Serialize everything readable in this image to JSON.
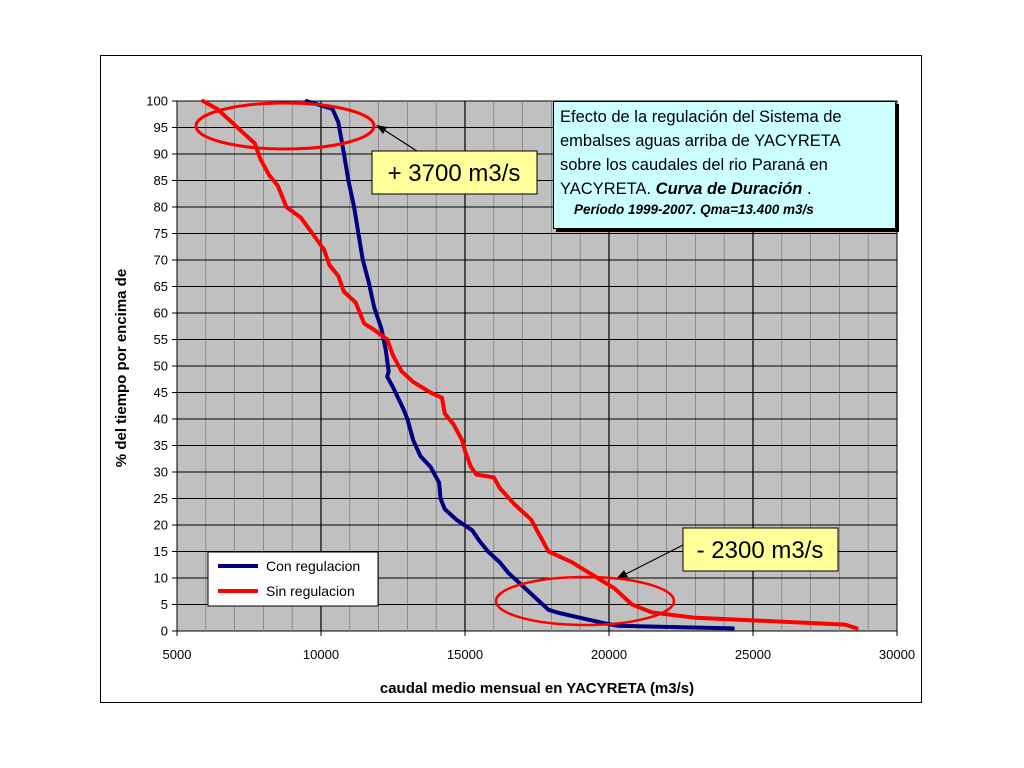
{
  "chart_data": {
    "type": "line",
    "xlabel": "caudal medio mensual en YACYRETA (m3/s)",
    "ylabel": "% del tiempo por encima de",
    "xlim": [
      5000,
      30000
    ],
    "ylim": [
      0,
      100
    ],
    "x_ticks": [
      "5000",
      "10000",
      "15000",
      "20000",
      "25000",
      "30000"
    ],
    "y_ticks": [
      "0",
      "5",
      "10",
      "15",
      "20",
      "25",
      "30",
      "35",
      "40",
      "45",
      "50",
      "55",
      "60",
      "65",
      "70",
      "75",
      "80",
      "85",
      "90",
      "95",
      "100"
    ],
    "grid": true,
    "legend_position": "bottom-left",
    "series": [
      {
        "name": "Con regulacion",
        "color": "#000080",
        "x": [
          9500,
          10400,
          10600,
          10700,
          10800,
          10950,
          11150,
          11300,
          11450,
          11650,
          11850,
          12100,
          12250,
          12300,
          12350,
          12300,
          12500,
          12850,
          13000,
          13200,
          13450,
          13800,
          14100,
          14150,
          14300,
          14700,
          15250,
          15500,
          15800,
          16200,
          16500,
          16800,
          17300,
          17900,
          18200,
          19000,
          19800,
          20300,
          21000,
          22500,
          24300
        ],
        "y": [
          100,
          98.5,
          96,
          93,
          90,
          85,
          80,
          75,
          70,
          66,
          61,
          57,
          53,
          51,
          49,
          48,
          46,
          42,
          40,
          36,
          33,
          31,
          28,
          25,
          23,
          21,
          19,
          17,
          15,
          13,
          11,
          9.5,
          7,
          4,
          3.5,
          2.5,
          1.5,
          1,
          0.9,
          0.7,
          0.5
        ]
      },
      {
        "name": "Sin regulacion",
        "color": "#ff0000",
        "x": [
          5900,
          6400,
          6900,
          7300,
          7700,
          7900,
          8200,
          8500,
          8800,
          9300,
          9700,
          10100,
          10300,
          10600,
          10800,
          11200,
          11500,
          11800,
          12300,
          12500,
          12800,
          13200,
          13800,
          14200,
          14300,
          14600,
          14900,
          15000,
          15200,
          15400,
          16000,
          16200,
          16700,
          17300,
          17900,
          18700,
          19600,
          20200,
          20800,
          21500,
          23000,
          25000,
          27000,
          28200,
          28600
        ],
        "y": [
          100,
          98.5,
          96,
          94,
          92,
          89,
          86,
          84,
          80,
          78,
          75,
          72,
          69,
          67,
          64,
          62,
          58,
          57,
          55,
          52,
          49,
          47,
          45,
          44,
          41,
          39,
          36,
          34,
          31,
          29.5,
          29,
          27,
          24,
          21,
          15,
          13,
          10,
          8,
          5,
          3.5,
          2.5,
          2,
          1.5,
          1.2,
          0.5
        ]
      }
    ]
  },
  "callouts": {
    "top": "+ 3700 m3/s",
    "bottom": "- 2300 m3/s"
  },
  "infobox": {
    "line1": "Efecto de la regulación del Sistema de",
    "line2": "embalses aguas arriba de YACYRETA",
    "line3": "sobre los caudales del rio Paraná en",
    "line4_prefix": "YACYRETA. ",
    "line4_emphasis": "Curva de Duración",
    "line4_suffix": " .",
    "period": "Período 1999-2007. Qma=13.400 m3/s"
  },
  "colors": {
    "plot_background": "#c0c0c0",
    "callout_fill": "#ffff99",
    "infobox_fill": "#ccffff",
    "ellipse": "#ff0000"
  }
}
